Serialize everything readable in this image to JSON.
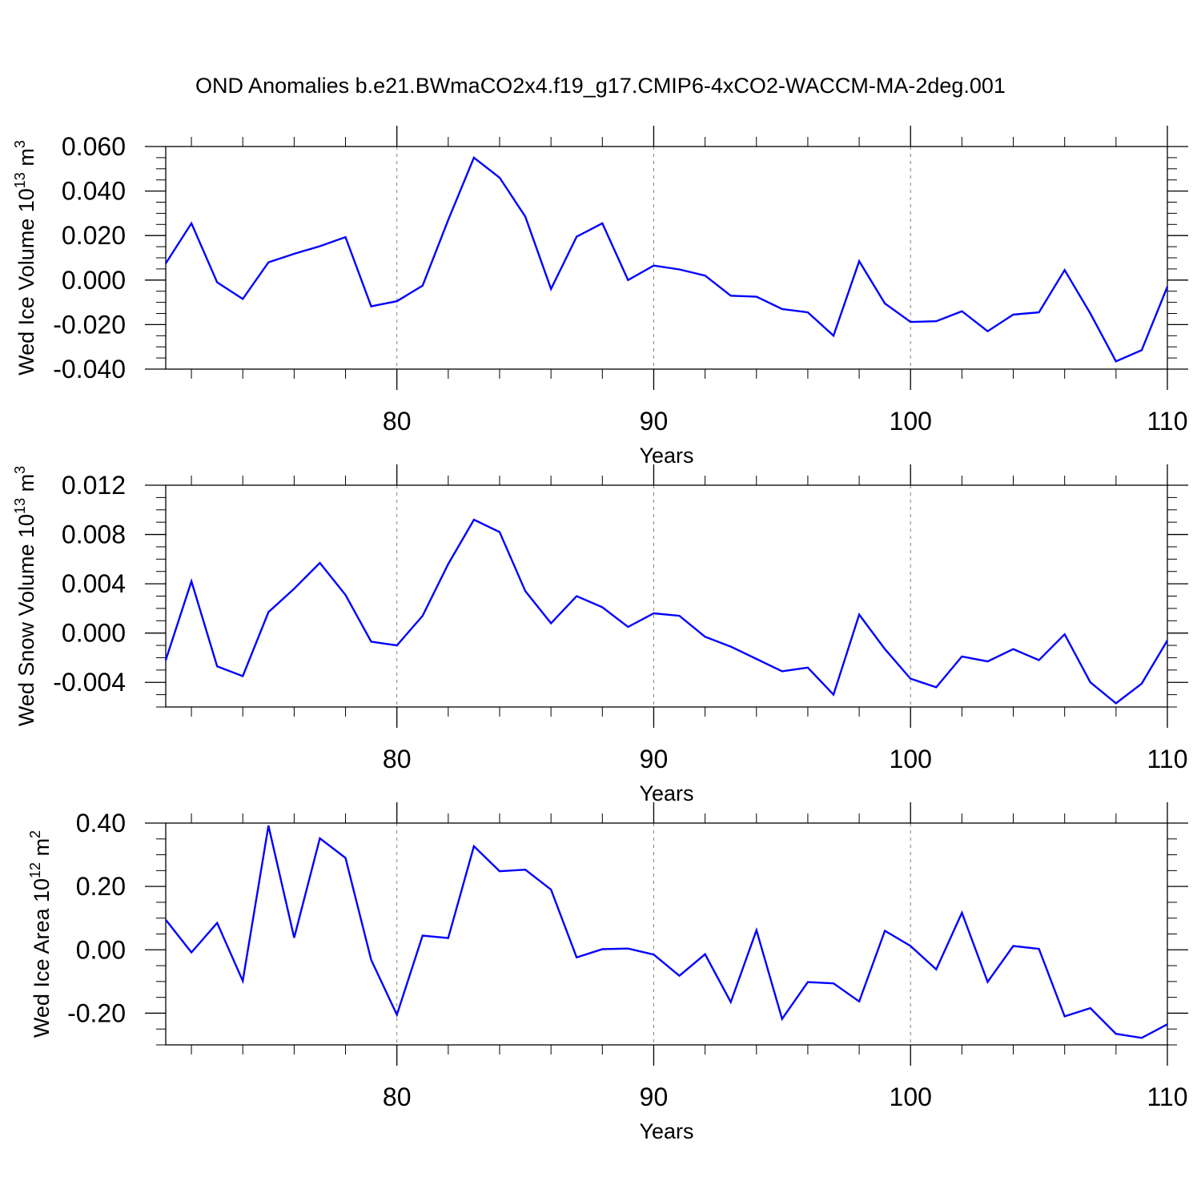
{
  "title": "OND Anomalies b.e21.BWmaCO2x4.f19_g17.CMIP6-4xCO2-WACCM-MA-2deg.001",
  "colors": {
    "line": "#0000ff",
    "axis": "#000000",
    "grid": "#808080"
  },
  "chart_data": [
    {
      "type": "line",
      "title": "",
      "xlabel": "Years",
      "ylabel": "Wed Ice Volume",
      "yunit_base": "10",
      "yunit_exp": "13",
      "yunit_tail": "m",
      "yunit_tail_exp": "3",
      "xlim": [
        71,
        110
      ],
      "ylim": [
        -0.04,
        0.06
      ],
      "x_ticks": [
        80,
        90,
        100,
        110
      ],
      "x_tick_labels": [
        "80",
        "90",
        "100",
        "110"
      ],
      "y_ticks": [
        -0.04,
        -0.02,
        0.0,
        0.02,
        0.04,
        0.06
      ],
      "y_tick_labels": [
        "-0.040",
        "-0.020",
        "0.000",
        "0.020",
        "0.040",
        "0.060"
      ],
      "grid": "vertical dashed at major x ticks",
      "series": [
        {
          "x": [
            71,
            72,
            73,
            74,
            75,
            76,
            77,
            78,
            79,
            80,
            81,
            82,
            83,
            84,
            85,
            86,
            87,
            88,
            89,
            90,
            91,
            92,
            93,
            94,
            95,
            96,
            97,
            98,
            99,
            100,
            101,
            102,
            103,
            104,
            105,
            106,
            107,
            108,
            109,
            110
          ],
          "values": [
            0.0075,
            0.0255,
            -0.001,
            -0.0085,
            0.008,
            0.0118,
            0.0152,
            0.0193,
            -0.0118,
            -0.0095,
            -0.0025,
            0.027,
            0.055,
            0.046,
            0.0285,
            -0.004,
            0.0195,
            0.0255,
            0.0,
            0.0065,
            0.0048,
            0.002,
            -0.007,
            -0.0075,
            -0.013,
            -0.0145,
            -0.025,
            0.0085,
            -0.0105,
            -0.0188,
            -0.0185,
            -0.014,
            -0.023,
            -0.0155,
            -0.0145,
            0.0045,
            -0.015,
            -0.0365,
            -0.0315,
            -0.003
          ]
        }
      ]
    },
    {
      "type": "line",
      "title": "",
      "xlabel": "Years",
      "ylabel": "Wed Snow Volume",
      "yunit_base": "10",
      "yunit_exp": "13",
      "yunit_tail": "m",
      "yunit_tail_exp": "3",
      "xlim": [
        71,
        110
      ],
      "ylim": [
        -0.006,
        0.012
      ],
      "x_ticks": [
        80,
        90,
        100,
        110
      ],
      "x_tick_labels": [
        "80",
        "90",
        "100",
        "110"
      ],
      "y_ticks": [
        -0.004,
        0.0,
        0.004,
        0.008,
        0.012
      ],
      "y_tick_labels": [
        "-0.004",
        "0.000",
        "0.004",
        "0.008",
        "0.012"
      ],
      "grid": "vertical dashed at major x ticks",
      "series": [
        {
          "x": [
            71,
            72,
            73,
            74,
            75,
            76,
            77,
            78,
            79,
            80,
            81,
            82,
            83,
            84,
            85,
            86,
            87,
            88,
            89,
            90,
            91,
            92,
            93,
            94,
            95,
            96,
            97,
            98,
            99,
            100,
            101,
            102,
            103,
            104,
            105,
            106,
            107,
            108,
            109,
            110
          ],
          "values": [
            -0.0022,
            0.0042,
            -0.0027,
            -0.0035,
            0.0017,
            0.0036,
            0.0057,
            0.0031,
            -0.0007,
            -0.001,
            0.0014,
            0.0056,
            0.0092,
            0.0082,
            0.0034,
            0.0008,
            0.003,
            0.0021,
            0.0005,
            0.0016,
            0.0014,
            -0.0003,
            -0.0011,
            -0.0021,
            -0.0031,
            -0.0028,
            -0.005,
            0.0015,
            -0.0013,
            -0.0037,
            -0.0044,
            -0.0019,
            -0.0023,
            -0.0013,
            -0.0022,
            -0.0001,
            -0.004,
            -0.0057,
            -0.0041,
            -0.0006
          ]
        }
      ]
    },
    {
      "type": "line",
      "title": "",
      "xlabel": "Years",
      "ylabel": "Wed Ice Area",
      "yunit_base": "10",
      "yunit_exp": "12",
      "yunit_tail": "m",
      "yunit_tail_exp": "2",
      "xlim": [
        71,
        110
      ],
      "ylim": [
        -0.3,
        0.4
      ],
      "x_ticks": [
        80,
        90,
        100,
        110
      ],
      "x_tick_labels": [
        "80",
        "90",
        "100",
        "110"
      ],
      "y_ticks": [
        -0.2,
        0.0,
        0.2,
        0.4
      ],
      "y_tick_labels": [
        "-0.20",
        "0.00",
        "0.20",
        "0.40"
      ],
      "grid": "vertical dashed at major x ticks",
      "series": [
        {
          "x": [
            71,
            72,
            73,
            74,
            75,
            76,
            77,
            78,
            79,
            80,
            81,
            82,
            83,
            84,
            85,
            86,
            87,
            88,
            89,
            90,
            91,
            92,
            93,
            94,
            95,
            96,
            97,
            98,
            99,
            100,
            101,
            102,
            103,
            104,
            105,
            106,
            107,
            108,
            109,
            110
          ],
          "values": [
            0.095,
            -0.008,
            0.085,
            -0.098,
            0.392,
            0.038,
            0.352,
            0.29,
            -0.032,
            -0.205,
            0.045,
            0.037,
            0.327,
            0.248,
            0.253,
            0.19,
            -0.024,
            0.002,
            0.004,
            -0.015,
            -0.082,
            -0.014,
            -0.165,
            0.062,
            -0.218,
            -0.102,
            -0.106,
            -0.163,
            0.06,
            0.012,
            -0.062,
            0.117,
            -0.101,
            0.012,
            0.003,
            -0.21,
            -0.184,
            -0.265,
            -0.278,
            -0.235
          ]
        }
      ]
    }
  ]
}
